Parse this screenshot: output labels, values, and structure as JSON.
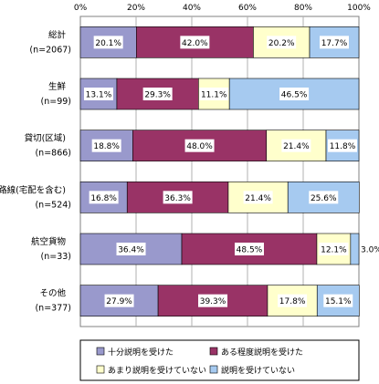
{
  "chart_data": {
    "type": "bar",
    "orientation": "horizontal",
    "stacked": true,
    "xlim": [
      0,
      100
    ],
    "x_ticks": [
      "0%",
      "20%",
      "40%",
      "60%",
      "80%",
      "100%"
    ],
    "grid": true,
    "legend_position": "bottom",
    "categories": [
      {
        "label": "総計",
        "sub": "(n=2067)"
      },
      {
        "label": "生鮮",
        "sub": "(n=99)"
      },
      {
        "label": "貸切(区域)",
        "sub": "(n=866)"
      },
      {
        "label": "路線(宅配を含む)",
        "sub": "(n=524)"
      },
      {
        "label": "航空貨物",
        "sub": "(n=33)"
      },
      {
        "label": "その他",
        "sub": "(n=377)"
      }
    ],
    "series": [
      {
        "name": "十分説明を受けた",
        "color": "#9999cc",
        "values": [
          20.1,
          13.1,
          18.8,
          16.8,
          36.4,
          27.9
        ],
        "labels": [
          "20.1%",
          "13.1%",
          "18.8%",
          "16.8%",
          "36.4%",
          "27.9%"
        ]
      },
      {
        "name": "ある程度説明を受けた",
        "color": "#993366",
        "values": [
          42.0,
          29.3,
          48.0,
          36.3,
          48.5,
          39.3
        ],
        "labels": [
          "42.0%",
          "29.3%",
          "48.0%",
          "36.3%",
          "48.5%",
          "39.3%"
        ]
      },
      {
        "name": "あまり説明を受けていない",
        "color": "#ffffcc",
        "values": [
          20.2,
          11.1,
          21.4,
          21.4,
          12.1,
          17.8
        ],
        "labels": [
          "20.2%",
          "11.1%",
          "21.4%",
          "21.4%",
          "12.1%",
          "17.8%"
        ]
      },
      {
        "name": "説明を受けていない",
        "color": "#a6caf0",
        "values": [
          17.7,
          46.5,
          11.8,
          25.6,
          3.0,
          15.1
        ],
        "labels": [
          "17.7%",
          "46.5%",
          "11.8%",
          "25.6%",
          "3.0%",
          "15.1%"
        ]
      }
    ]
  }
}
